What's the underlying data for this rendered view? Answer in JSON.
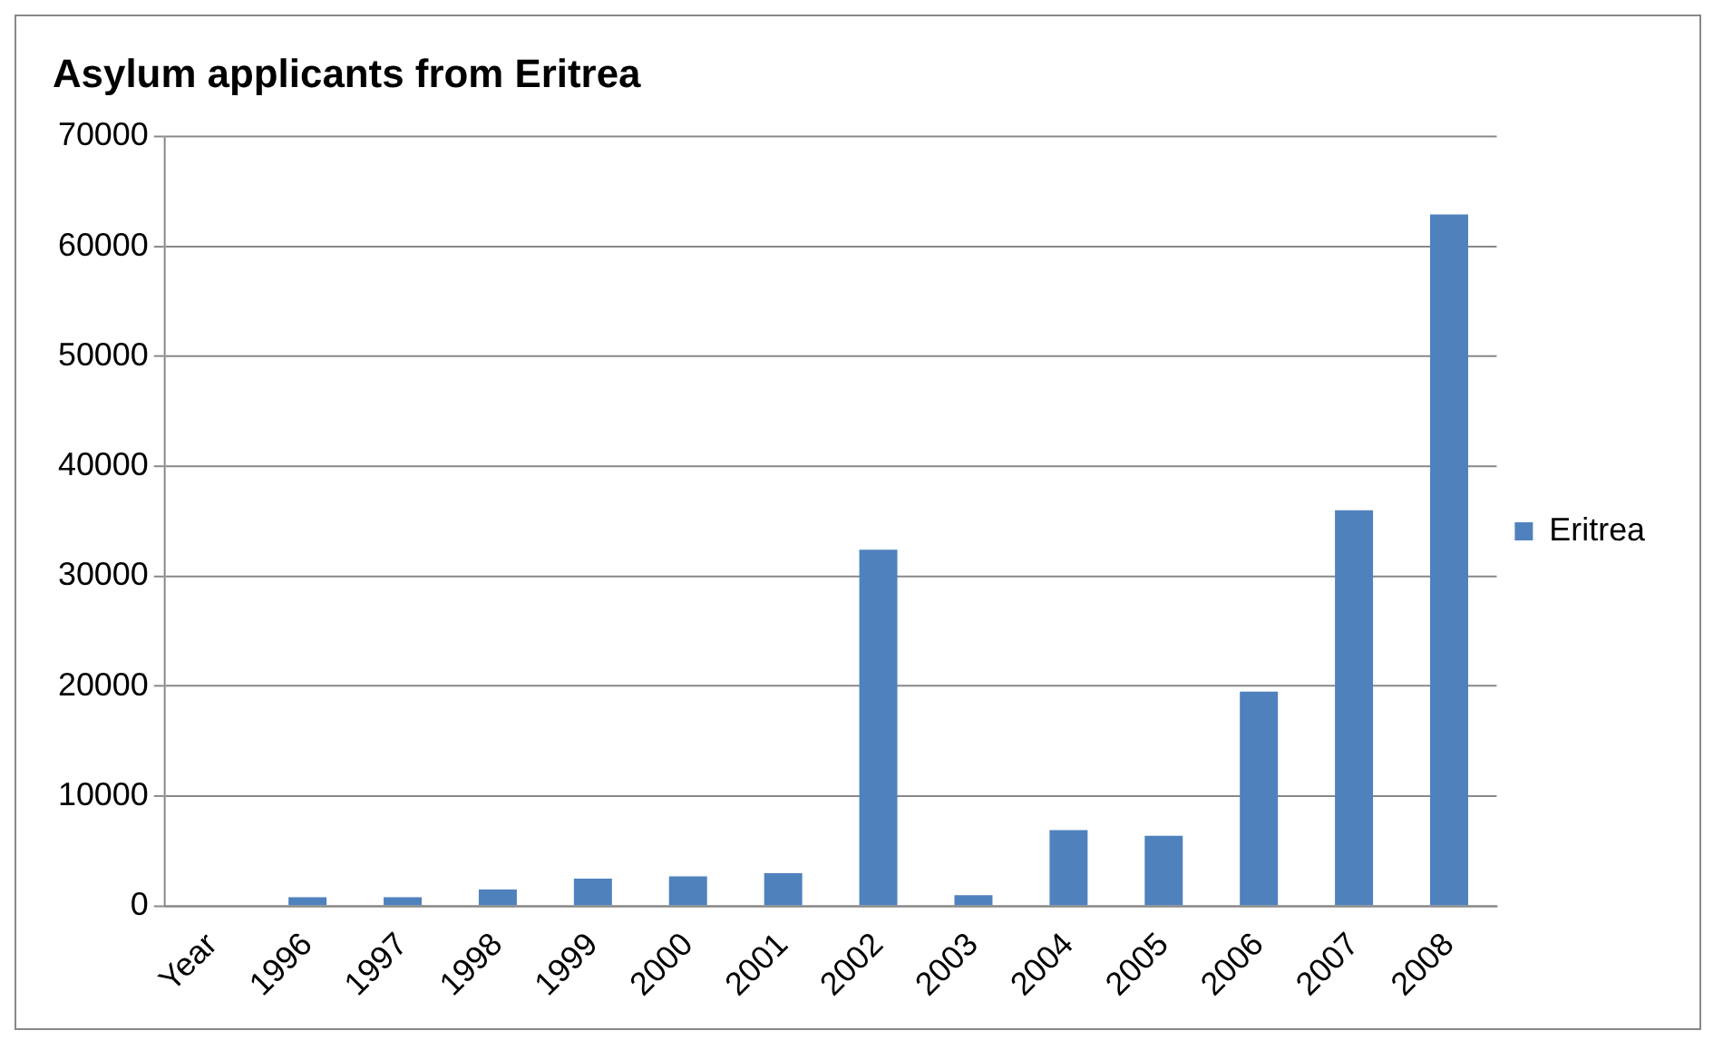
{
  "chart_data": {
    "type": "bar",
    "title": "Asylum applicants from Eritrea",
    "categories": [
      "Year",
      "1996",
      "1997",
      "1998",
      "1999",
      "2000",
      "2001",
      "2002",
      "2003",
      "2004",
      "2005",
      "2006",
      "2007",
      "2008"
    ],
    "series": [
      {
        "name": "Eritrea",
        "color": "#4f81bd",
        "values": [
          null,
          800,
          800,
          1500,
          2500,
          2700,
          3000,
          32400,
          1000,
          6900,
          6400,
          19500,
          36000,
          62900
        ]
      }
    ],
    "ylim": [
      0,
      70000
    ],
    "yticks": [
      0,
      10000,
      20000,
      30000,
      40000,
      50000,
      60000,
      70000
    ],
    "grid": "y",
    "legend": "right"
  }
}
